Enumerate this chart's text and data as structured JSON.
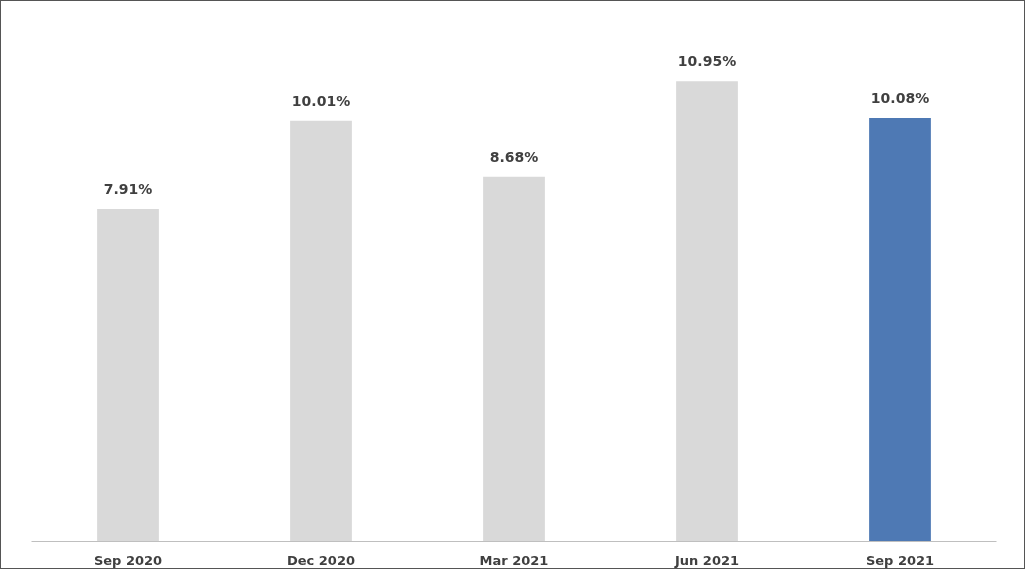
{
  "chart_data": {
    "type": "bar",
    "categories": [
      "Sep 2020",
      "Dec 2020",
      "Mar 2021",
      "Jun 2021",
      "Sep 2021"
    ],
    "values": [
      7.91,
      10.01,
      8.68,
      10.95,
      10.08
    ],
    "colors": [
      "#d9d9d9",
      "#d9d9d9",
      "#d9d9d9",
      "#d9d9d9",
      "#4e79b4"
    ],
    "value_labels": [
      "7.91%",
      "10.01%",
      "8.68%",
      "10.95%",
      "10.08%"
    ],
    "tick_labels": "x"
  }
}
